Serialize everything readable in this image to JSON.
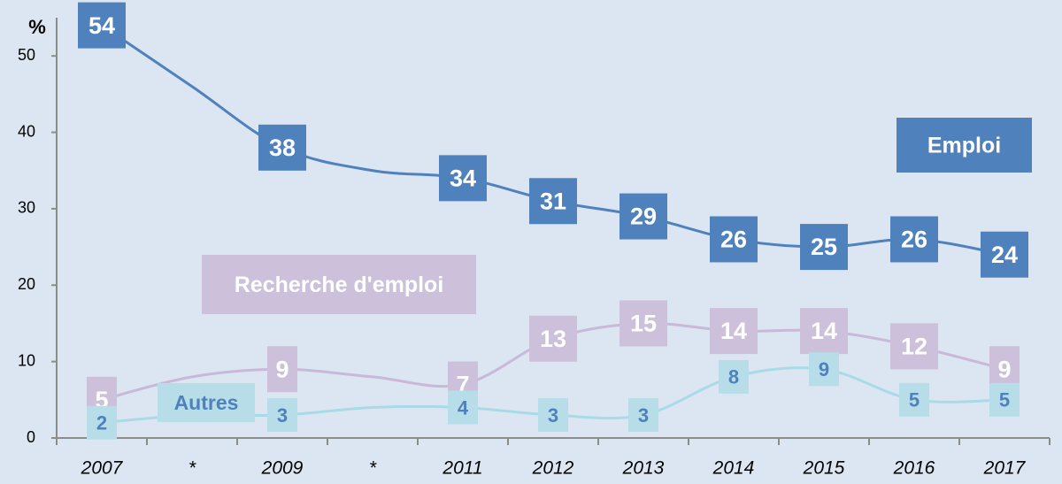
{
  "chart_data": {
    "type": "line",
    "y_label": "%",
    "categories": [
      "2007",
      "*",
      "2009",
      "*",
      "2011",
      "2012",
      "2013",
      "2014",
      "2015",
      "2016",
      "2017"
    ],
    "series": [
      {
        "name": "Emploi",
        "color": "#4f81bd",
        "values": [
          54,
          46,
          38,
          35,
          34,
          31,
          29,
          26,
          25,
          26,
          24
        ],
        "value_labels": [
          "54",
          null,
          "38",
          null,
          "34",
          "31",
          "29",
          "26",
          "25",
          "26",
          "24"
        ]
      },
      {
        "name": "Recherche d'emploi",
        "color": "#c9b8d8",
        "values": [
          5,
          8,
          9,
          8,
          7,
          13,
          15,
          14,
          14,
          12,
          9
        ],
        "value_labels": [
          "5",
          null,
          "9",
          null,
          "7",
          "13",
          "15",
          "14",
          "14",
          "12",
          "9"
        ]
      },
      {
        "name": "Autres",
        "color": "#a8dbe7",
        "values": [
          2,
          3,
          3,
          4,
          4,
          3,
          3,
          8,
          9,
          5,
          5
        ],
        "value_labels": [
          "2",
          null,
          "3",
          null,
          "4",
          "3",
          "3",
          "8",
          "9",
          "5",
          "5"
        ]
      }
    ],
    "ylim": [
      0,
      55
    ],
    "yticks": [
      0,
      10,
      20,
      30,
      40,
      50
    ],
    "grid": false
  }
}
